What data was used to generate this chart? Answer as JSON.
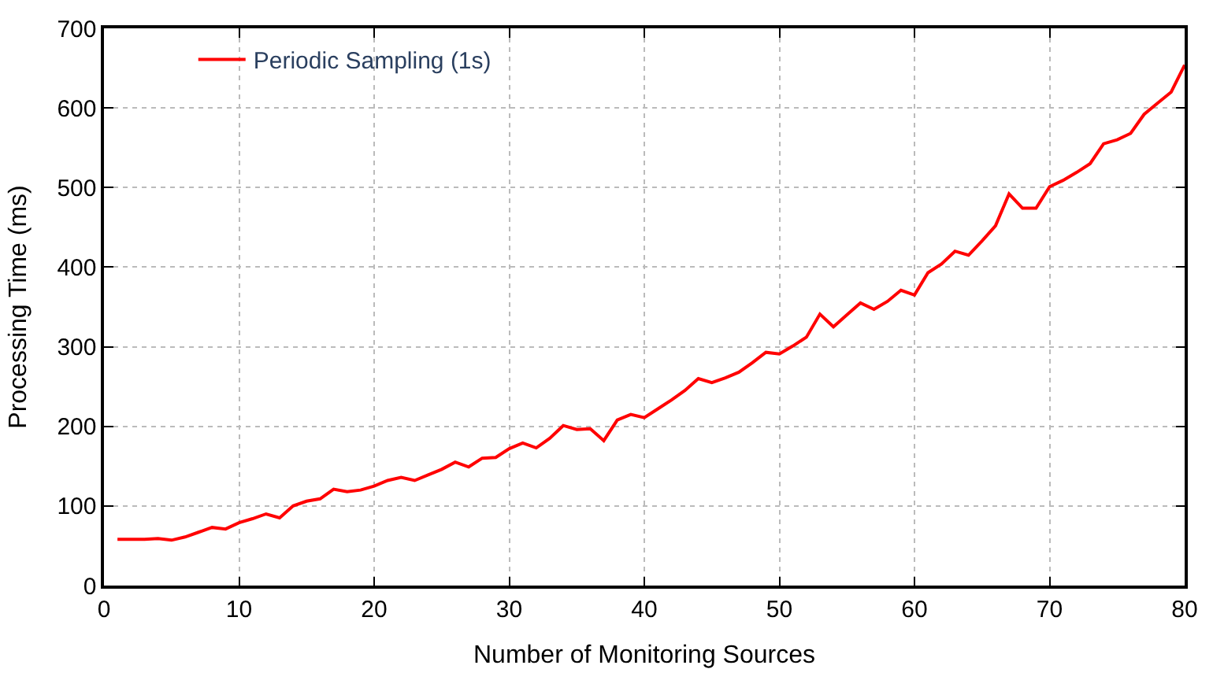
{
  "chart_data": {
    "type": "line",
    "xlabel": "Number of Monitoring Sources",
    "ylabel": "Processing Time (ms)",
    "x": [
      1,
      2,
      3,
      4,
      5,
      6,
      7,
      8,
      9,
      10,
      11,
      12,
      13,
      14,
      15,
      16,
      17,
      18,
      19,
      20,
      21,
      22,
      23,
      24,
      25,
      26,
      27,
      28,
      29,
      30,
      31,
      32,
      33,
      34,
      35,
      36,
      37,
      38,
      39,
      40,
      41,
      42,
      43,
      44,
      45,
      46,
      47,
      48,
      49,
      50,
      51,
      52,
      53,
      54,
      55,
      56,
      57,
      58,
      59,
      60,
      61,
      62,
      63,
      64,
      65,
      66,
      67,
      68,
      69,
      70,
      71,
      72,
      73,
      74,
      75,
      76,
      77,
      78,
      79,
      80
    ],
    "series": [
      {
        "name": "Periodic Sampling (1s)",
        "color": "#ff0000",
        "values": [
          58,
          58,
          58,
          59,
          57,
          61,
          67,
          73,
          71,
          79,
          84,
          90,
          85,
          100,
          106,
          109,
          121,
          118,
          120,
          125,
          132,
          136,
          132,
          139,
          146,
          155,
          149,
          160,
          161,
          172,
          179,
          173,
          185,
          201,
          196,
          197,
          182,
          208,
          215,
          211,
          222,
          233,
          245,
          260,
          255,
          261,
          268,
          280,
          293,
          291,
          301,
          312,
          341,
          325,
          340,
          355,
          347,
          357,
          371,
          365,
          393,
          404,
          420,
          415,
          433,
          452,
          492,
          474,
          474,
          501,
          509,
          519,
          530,
          555,
          560,
          568,
          592,
          606,
          620,
          654
        ]
      }
    ],
    "xlim": [
      0,
      80
    ],
    "xticks": [
      0,
      10,
      20,
      30,
      40,
      50,
      60,
      70,
      80
    ],
    "ylim": [
      0,
      700
    ],
    "yticks": [
      0,
      100,
      200,
      300,
      400,
      500,
      600,
      700
    ],
    "grid": true,
    "legend": "top left",
    "marker": "none",
    "line_style": "solid"
  }
}
